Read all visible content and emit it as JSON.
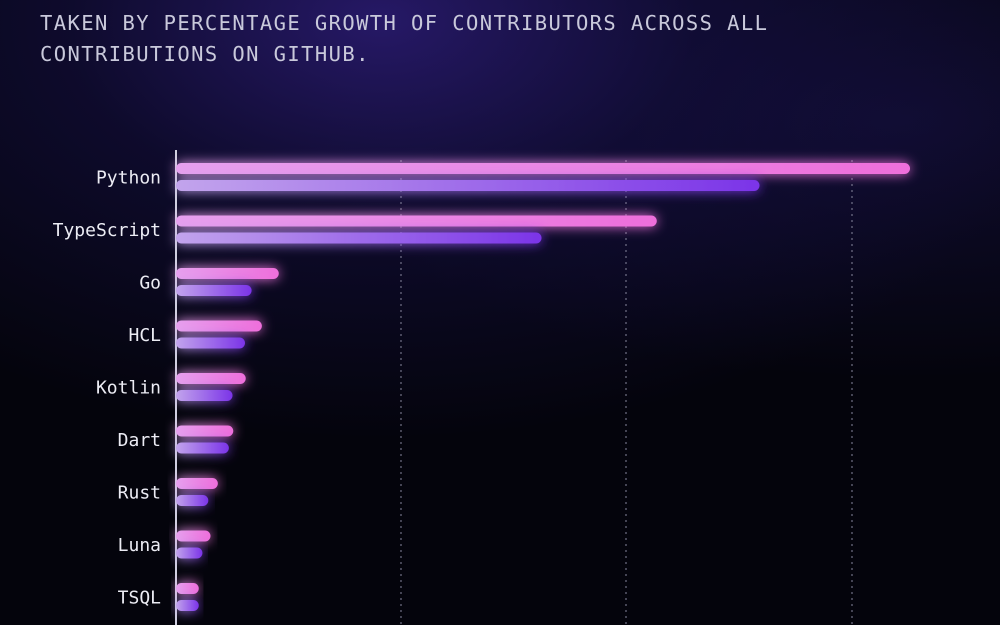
{
  "header": {
    "subtitle": "TAKEN BY PERCENTAGE GROWTH OF CONTRIBUTORS ACROSS ALL CONTRIBUTIONS ON GITHUB."
  },
  "chart_data": {
    "type": "bar",
    "orientation": "horizontal",
    "categories": [
      "Python",
      "TypeScript",
      "Go",
      "HCL",
      "Kotlin",
      "Dart",
      "Rust",
      "Luna",
      "TSQL"
    ],
    "series": [
      {
        "values": [
          100,
          65.5,
          14,
          11.7,
          9.5,
          7.8,
          5.7,
          4.7,
          3.1
        ]
      },
      {
        "values": [
          79.5,
          49.8,
          10.3,
          9.4,
          7.7,
          7.2,
          4.4,
          3.6,
          3.1
        ]
      }
    ],
    "xlim": [
      0,
      100
    ],
    "grid": true,
    "colors": {
      "series_1_start": "#e6a0ee",
      "series_1_end": "#ee6edb",
      "series_2_start": "#c2a4ec",
      "series_2_end": "#7b34e8",
      "gridline": "#8a8aa0",
      "axis": "#d0d0e0",
      "label": "#ececf4",
      "background": "#04040c"
    }
  }
}
